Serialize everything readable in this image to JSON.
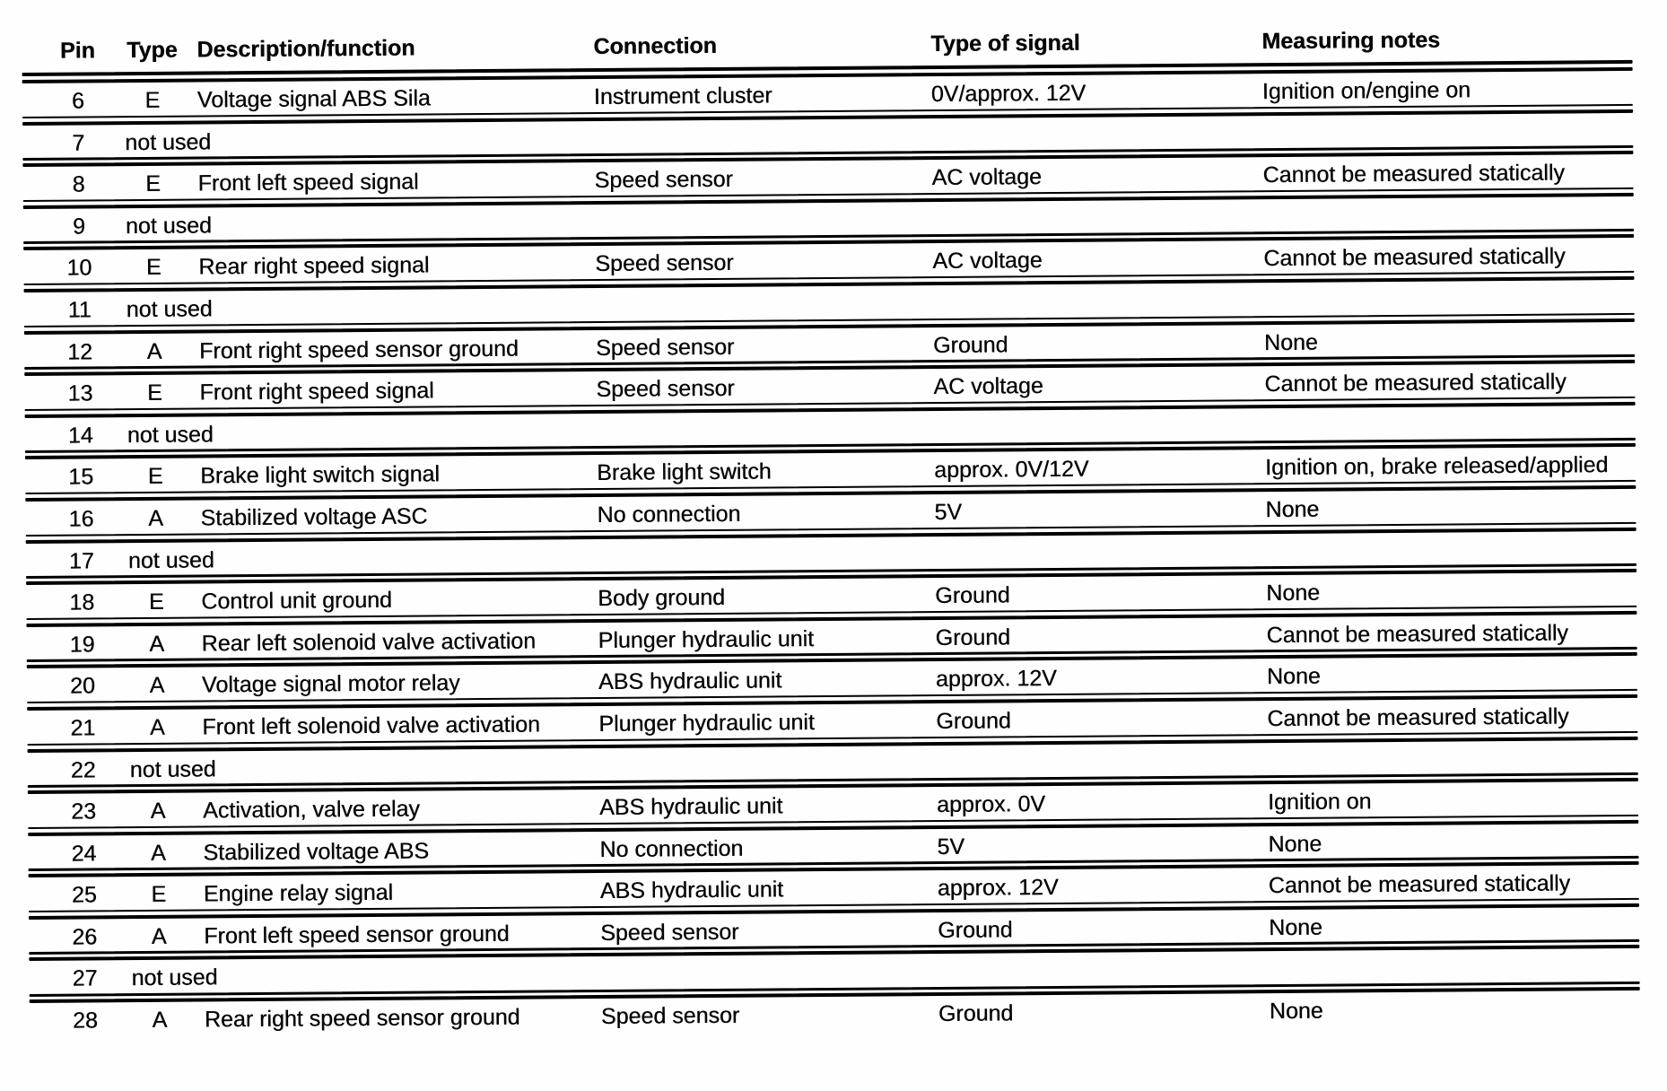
{
  "table": {
    "columns": [
      "Pin",
      "Type",
      "Description/function",
      "Connection",
      "Type of signal",
      "Measuring notes"
    ],
    "not_used_label": "not used",
    "rows": [
      {
        "pin": "6",
        "used": true,
        "type": "E",
        "description": "Voltage signal ABS Sila",
        "connection": "Instrument cluster",
        "signal": "0V/approx. 12V",
        "notes": "Ignition on/engine on"
      },
      {
        "pin": "7",
        "used": false
      },
      {
        "pin": "8",
        "used": true,
        "type": "E",
        "description": "Front left speed signal",
        "connection": "Speed sensor",
        "signal": "AC voltage",
        "notes": "Cannot be measured statically"
      },
      {
        "pin": "9",
        "used": false
      },
      {
        "pin": "10",
        "used": true,
        "type": "E",
        "description": "Rear right speed signal",
        "connection": "Speed sensor",
        "signal": "AC voltage",
        "notes": "Cannot be measured statically"
      },
      {
        "pin": "11",
        "used": false
      },
      {
        "pin": "12",
        "used": true,
        "type": "A",
        "description": "Front right speed sensor ground",
        "connection": "Speed sensor",
        "signal": "Ground",
        "notes": "None"
      },
      {
        "pin": "13",
        "used": true,
        "type": "E",
        "description": "Front right speed signal",
        "connection": "Speed sensor",
        "signal": "AC voltage",
        "notes": "Cannot be measured statically"
      },
      {
        "pin": "14",
        "used": false
      },
      {
        "pin": "15",
        "used": true,
        "type": "E",
        "description": "Brake light switch signal",
        "connection": "Brake light switch",
        "signal": "approx. 0V/12V",
        "notes": "Ignition on, brake released/applied"
      },
      {
        "pin": "16",
        "used": true,
        "type": "A",
        "description": "Stabilized voltage ASC",
        "connection": "No connection",
        "signal": "5V",
        "notes": "None"
      },
      {
        "pin": "17",
        "used": false
      },
      {
        "pin": "18",
        "used": true,
        "type": "E",
        "description": "Control unit ground",
        "connection": "Body ground",
        "signal": "Ground",
        "notes": "None"
      },
      {
        "pin": "19",
        "used": true,
        "type": "A",
        "description": "Rear left solenoid valve activation",
        "connection": "Plunger hydraulic unit",
        "signal": "Ground",
        "notes": "Cannot be measured statically"
      },
      {
        "pin": "20",
        "used": true,
        "type": "A",
        "description": "Voltage signal motor relay",
        "connection": "ABS hydraulic unit",
        "signal": "approx. 12V",
        "notes": "None"
      },
      {
        "pin": "21",
        "used": true,
        "type": "A",
        "description": "Front left solenoid valve activation",
        "connection": "Plunger hydraulic unit",
        "signal": "Ground",
        "notes": "Cannot be measured statically"
      },
      {
        "pin": "22",
        "used": false
      },
      {
        "pin": "23",
        "used": true,
        "type": "A",
        "description": "Activation, valve relay",
        "connection": "ABS hydraulic unit",
        "signal": "approx. 0V",
        "notes": "Ignition on"
      },
      {
        "pin": "24",
        "used": true,
        "type": "A",
        "description": "Stabilized voltage ABS",
        "connection": "No connection",
        "signal": "5V",
        "notes": "None"
      },
      {
        "pin": "25",
        "used": true,
        "type": "E",
        "description": "Engine relay signal",
        "connection": "ABS hydraulic unit",
        "signal": "approx. 12V",
        "notes": "Cannot be measured statically"
      },
      {
        "pin": "26",
        "used": true,
        "type": "A",
        "description": "Front left speed sensor ground",
        "connection": "Speed sensor",
        "signal": "Ground",
        "notes": "None"
      },
      {
        "pin": "27",
        "used": false
      },
      {
        "pin": "28",
        "used": true,
        "type": "A",
        "description": "Rear right speed sensor ground",
        "connection": "Speed sensor",
        "signal": "Ground",
        "notes": "None"
      }
    ]
  }
}
